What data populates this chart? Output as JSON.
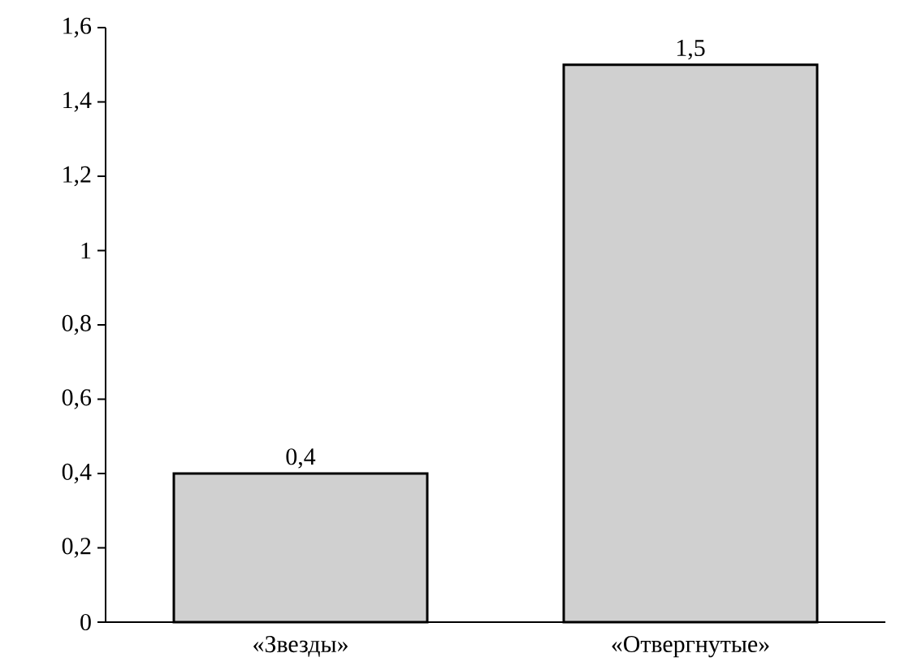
{
  "chart_data": {
    "type": "bar",
    "categories": [
      "«Звезды»",
      "«Отвергнутые»"
    ],
    "values": [
      0.4,
      1.5
    ],
    "value_labels": [
      "0,4",
      "1,5"
    ],
    "color": "#d0d0d0",
    "ylim": [
      0,
      1.6
    ],
    "yticks": [
      0,
      {
        "value": 0.2,
        "label": "0,2"
      },
      {
        "value": 0.4,
        "label": "0,4"
      },
      {
        "value": 0.6,
        "label": "0,6"
      },
      {
        "value": 0.8,
        "label": "0,8"
      },
      1,
      {
        "value": 1.2,
        "label": "1,2"
      },
      {
        "value": 1.4,
        "label": "1,4"
      },
      {
        "value": 1.6,
        "label": "1,6"
      }
    ],
    "grid": false
  }
}
